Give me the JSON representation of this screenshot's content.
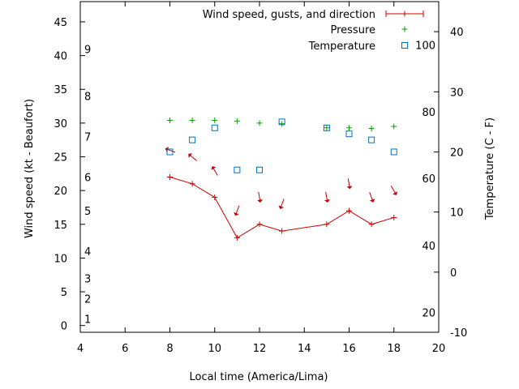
{
  "chart_data": {
    "type": "scatter",
    "xlabel": "Local time (America/Lima)",
    "ylabel": "Wind speed (kt - Beaufort)",
    "y2label": "Temperature (C - F)",
    "xlim": [
      4,
      20
    ],
    "ylim": [
      -1,
      48
    ],
    "y2lim": [
      -10,
      45
    ],
    "x_ticks": [
      4,
      6,
      8,
      10,
      12,
      14,
      16,
      18,
      20
    ],
    "y_ticks": [
      0,
      5,
      10,
      15,
      20,
      25,
      30,
      35,
      40,
      45
    ],
    "y2_ticks": [
      -10,
      0,
      10,
      20,
      30,
      40
    ],
    "beaufort_labels": [
      {
        "label": "1",
        "kt": 1
      },
      {
        "label": "2",
        "kt": 4
      },
      {
        "label": "3",
        "kt": 7
      },
      {
        "label": "4",
        "kt": 11
      },
      {
        "label": "5",
        "kt": 17
      },
      {
        "label": "6",
        "kt": 22
      },
      {
        "label": "7",
        "kt": 28
      },
      {
        "label": "8",
        "kt": 34
      },
      {
        "label": "9",
        "kt": 41
      }
    ],
    "fahrenheit_labels": [
      {
        "label": "20",
        "c": -6.7
      },
      {
        "label": "40",
        "c": 4.4
      },
      {
        "label": "60",
        "c": 15.6
      },
      {
        "label": "80",
        "c": 26.7
      },
      {
        "label": "100",
        "c": 37.8
      }
    ],
    "legend_position": "top-right",
    "grid": false,
    "series": [
      {
        "name": "Wind speed, gusts, and direction",
        "color": "#cc0000",
        "marker": "plus",
        "x": [
          8,
          9,
          10,
          11,
          12,
          13,
          15,
          16,
          17,
          18
        ],
        "y": [
          22,
          21,
          19,
          13,
          15,
          14,
          15,
          17,
          15,
          16
        ],
        "direction_deg": [
          290,
          310,
          330,
          200,
          170,
          200,
          170,
          170,
          160,
          150
        ]
      },
      {
        "name": "Pressure",
        "color": "#00a000",
        "marker": "plus",
        "x": [
          8,
          9,
          10,
          11,
          12,
          13,
          15,
          16,
          17,
          18
        ],
        "y": [
          30.4,
          30.4,
          30.4,
          30.3,
          30.0,
          29.9,
          29.3,
          29.3,
          29.2,
          29.5
        ]
      },
      {
        "name": "Temperature",
        "color": "#0070c0",
        "marker": "square",
        "axis": "y2",
        "x": [
          8,
          9,
          10,
          11,
          12,
          13,
          15,
          16,
          17,
          18
        ],
        "y": [
          20,
          22,
          24,
          17,
          17,
          25,
          24,
          23,
          22,
          20
        ]
      }
    ]
  }
}
